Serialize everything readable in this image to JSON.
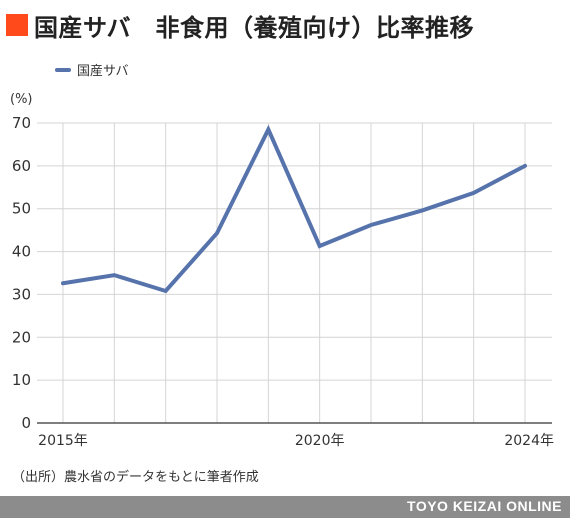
{
  "title": "国産サバ　非食用（養殖向け）比率推移",
  "legend_label": "国産サバ",
  "unit_label": "(%)",
  "source": "（出所）農水省のデータをもとに筆者作成",
  "brand": "TOYO KEIZAI ONLINE",
  "colors": {
    "accent": "#ff4a1c",
    "series": "#5673ac",
    "footer": "#8c8c8c"
  },
  "chart_data": {
    "type": "line",
    "title": "国産サバ　非食用（養殖向け）比率推移",
    "ylabel": "(%)",
    "ylim": [
      0,
      70
    ],
    "yticks": [
      0,
      10,
      20,
      30,
      40,
      50,
      60,
      70
    ],
    "x": [
      2015,
      2016,
      2017,
      2018,
      2019,
      2020,
      2021,
      2022,
      2023,
      2024
    ],
    "xtick_labels": {
      "2015": "2015年",
      "2020": "2020年",
      "2024": "2024年"
    },
    "series": [
      {
        "name": "国産サバ",
        "values": [
          32.6,
          34.5,
          30.8,
          44.3,
          68.5,
          41.3,
          46.2,
          49.6,
          53.7,
          60.0
        ]
      }
    ],
    "grid": true,
    "legend_position": "top-left"
  }
}
